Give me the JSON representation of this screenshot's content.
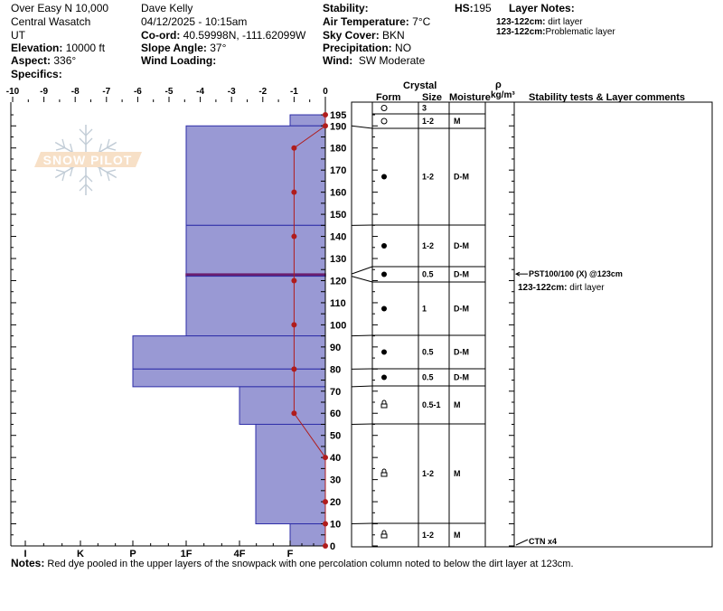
{
  "header": {
    "location": "Over Easy N 10,000",
    "range": "Central Wasatch",
    "state": "UT",
    "elevation_label": "Elevation:",
    "elevation": "10000 ft",
    "aspect_label": "Aspect:",
    "aspect": "336°",
    "specifics_label": "Specifics:",
    "observer": "Dave Kelly",
    "datetime": "04/12/2025 - 10:15am",
    "coord_label": "Co-ord:",
    "coord": "40.59998N, -111.62099W",
    "slope_label": "Slope Angle:",
    "slope": "37°",
    "wind_loading_label": "Wind Loading:",
    "stability_label": "Stability:",
    "air_temp_label": "Air Temperature:",
    "air_temp": "7°C",
    "sky_label": "Sky Cover:",
    "sky": "BKN",
    "precip_label": "Precipitation:",
    "precip": "NO",
    "wind_label": "Wind:",
    "wind": "SW Moderate",
    "hs_label": "HS:",
    "hs": "195",
    "layer_notes_label": "Layer Notes:",
    "layer_notes": [
      {
        "range": "123-122cm:",
        "text": "dirt layer"
      },
      {
        "range": "123-122cm:",
        "text": "Problematic layer"
      }
    ]
  },
  "table_headers": {
    "crystal": "Crystal",
    "form": "Form",
    "size": "Size",
    "moisture": "Moisture",
    "rho": "ρ",
    "density_unit": "kg/m³",
    "comments": "Stability tests & Layer comments"
  },
  "comments": [
    {
      "text": "PST100/100 (X) @123cm",
      "depth": 123
    },
    {
      "text_label": "123-122cm:",
      "text": "dirt layer"
    },
    {
      "text": "CTN x4",
      "depth": 0
    }
  ],
  "notes_label": "Notes:",
  "notes": "Red dye pooled in the upper layers of the snowpack with one percolation column noted to below the dirt layer at 123cm.",
  "watermark": "SNOW PILOT",
  "colors": {
    "fill": "#9999d4",
    "edge": "#2e2ea8",
    "temp": "#b01c1c",
    "dirt": "#6b1f70"
  },
  "chart_data": {
    "type": "snow-profile",
    "temperature_axis": {
      "ticks": [
        -10,
        -9,
        -8,
        -7,
        -6,
        -5,
        -4,
        -3,
        -2,
        -1,
        0
      ],
      "range": [
        -10,
        0
      ]
    },
    "depth_axis": {
      "ticks": [
        0,
        10,
        20,
        30,
        40,
        50,
        60,
        70,
        80,
        90,
        100,
        110,
        120,
        130,
        140,
        150,
        160,
        170,
        180,
        190,
        195
      ],
      "range": [
        0,
        195
      ]
    },
    "hardness_axis": {
      "ticks": [
        "I",
        "K",
        "P",
        "1F",
        "4F",
        "F"
      ]
    },
    "layers": [
      {
        "top": 195,
        "bottom": 190,
        "hardness": "F"
      },
      {
        "top": 190,
        "bottom": 145,
        "hardness": "1F"
      },
      {
        "top": 145,
        "bottom": 123,
        "hardness": "1F"
      },
      {
        "top": 123,
        "bottom": 122,
        "hardness": "1F",
        "dirt": true
      },
      {
        "top": 122,
        "bottom": 95,
        "hardness": "1F"
      },
      {
        "top": 95,
        "bottom": 80,
        "hardness": "P"
      },
      {
        "top": 80,
        "bottom": 72,
        "hardness": "P"
      },
      {
        "top": 72,
        "bottom": 55,
        "hardness": "4F"
      },
      {
        "top": 55,
        "bottom": 10,
        "hardness": "4F-"
      },
      {
        "top": 10,
        "bottom": 0,
        "hardness": "F"
      }
    ],
    "temperature_profile": [
      {
        "depth": 195,
        "temp": 0
      },
      {
        "depth": 190,
        "temp": 0
      },
      {
        "depth": 180,
        "temp": -1
      },
      {
        "depth": 160,
        "temp": -1
      },
      {
        "depth": 140,
        "temp": -1
      },
      {
        "depth": 120,
        "temp": -1
      },
      {
        "depth": 100,
        "temp": -1
      },
      {
        "depth": 80,
        "temp": -1
      },
      {
        "depth": 60,
        "temp": -1
      },
      {
        "depth": 40,
        "temp": 0
      },
      {
        "depth": 20,
        "temp": 0
      },
      {
        "depth": 10,
        "temp": 0
      },
      {
        "depth": 0,
        "temp": 0
      }
    ],
    "table_rows": [
      {
        "form": "open-circle",
        "size": "3",
        "moisture": "",
        "depth": 195
      },
      {
        "form": "open-circle",
        "size": "1-2",
        "moisture": "M",
        "depth": 190
      },
      {
        "form": "filled-circle",
        "size": "1-2",
        "moisture": "D-M",
        "depth": 145
      },
      {
        "form": "filled-circle",
        "size": "1-2",
        "moisture": "D-M",
        "depth": 123
      },
      {
        "form": "filled-circle",
        "size": "0.5",
        "moisture": "D-M",
        "depth": 122
      },
      {
        "form": "filled-circle",
        "size": "1",
        "moisture": "D-M",
        "depth": 95
      },
      {
        "form": "filled-circle",
        "size": "0.5",
        "moisture": "D-M",
        "depth": 80
      },
      {
        "form": "filled-circle",
        "size": "0.5",
        "moisture": "D-M",
        "depth": 72
      },
      {
        "form": "melt-crust",
        "size": "0.5-1",
        "moisture": "M",
        "depth": 55
      },
      {
        "form": "melt-crust",
        "size": "1-2",
        "moisture": "M",
        "depth": 10
      },
      {
        "form": "melt-crust",
        "size": "1-2",
        "moisture": "M",
        "depth": 0
      }
    ]
  }
}
